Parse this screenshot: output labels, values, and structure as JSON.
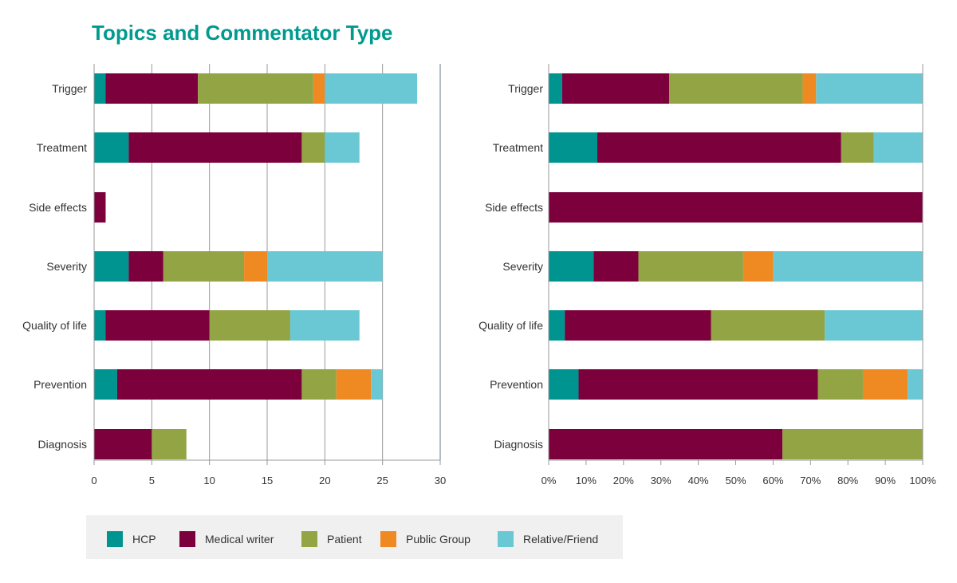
{
  "title": "Topics and Commentator Type",
  "legend": {
    "items": [
      {
        "label": "HCP",
        "color": "#009490"
      },
      {
        "label": "Medical writer",
        "color": "#7b003b"
      },
      {
        "label": "Patient",
        "color": "#93a444"
      },
      {
        "label": "Public Group",
        "color": "#ef8a22"
      },
      {
        "label": "Relative/Friend",
        "color": "#6ac8d5"
      }
    ]
  },
  "chart_data": [
    {
      "type": "bar",
      "orientation": "horizontal",
      "stacked": true,
      "categories": [
        "Trigger",
        "Treatment",
        "Side effects",
        "Severity",
        "Quality of life",
        "Prevention",
        "Diagnosis"
      ],
      "series": [
        {
          "name": "HCP",
          "values": [
            1,
            3,
            0,
            3,
            1,
            2,
            0
          ]
        },
        {
          "name": "Medical writer",
          "values": [
            8,
            15,
            1,
            3,
            9,
            16,
            5
          ]
        },
        {
          "name": "Patient",
          "values": [
            10,
            2,
            0,
            7,
            7,
            3,
            3
          ]
        },
        {
          "name": "Public Group",
          "values": [
            1,
            0,
            0,
            2,
            0,
            3,
            0
          ]
        },
        {
          "name": "Relative/Friend",
          "values": [
            8,
            3,
            0,
            10,
            6,
            1,
            0
          ]
        }
      ],
      "xlim": [
        0,
        30
      ],
      "xticks": [
        "0",
        "5",
        "10",
        "15",
        "20",
        "25",
        "30"
      ],
      "grid": true
    },
    {
      "type": "bar",
      "orientation": "horizontal",
      "stacked": true,
      "normalized": true,
      "categories": [
        "Trigger",
        "Treatment",
        "Side effects",
        "Severity",
        "Quality of life",
        "Prevention",
        "Diagnosis"
      ],
      "series": [
        {
          "name": "HCP",
          "values": [
            3.6,
            13.0,
            0,
            12.0,
            4.3,
            8.0,
            0
          ]
        },
        {
          "name": "Medical writer",
          "values": [
            28.6,
            65.2,
            100,
            12.0,
            39.1,
            64.0,
            62.5
          ]
        },
        {
          "name": "Patient",
          "values": [
            35.7,
            8.7,
            0,
            28.0,
            30.4,
            12.0,
            37.5
          ]
        },
        {
          "name": "Public Group",
          "values": [
            3.6,
            0,
            0,
            8.0,
            0,
            12.0,
            0
          ]
        },
        {
          "name": "Relative/Friend",
          "values": [
            28.6,
            13.0,
            0,
            40.0,
            26.1,
            4.0,
            0
          ]
        }
      ],
      "xlim": [
        0,
        100
      ],
      "xticks": [
        "0%",
        "10%",
        "20%",
        "30%",
        "40%",
        "50%",
        "60%",
        "70%",
        "80%",
        "90%",
        "100%"
      ],
      "grid": false
    }
  ]
}
